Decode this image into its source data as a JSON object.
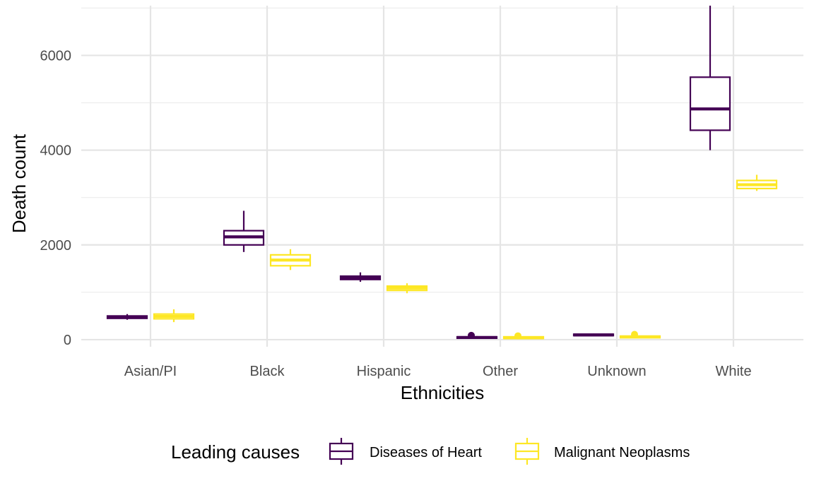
{
  "chart_data": {
    "type": "boxplot",
    "xlabel": "Ethnicities",
    "ylabel": "Death count",
    "ylim": [
      -150,
      7050
    ],
    "y_ticks": [
      0,
      2000,
      4000,
      6000
    ],
    "y_tick_labels": [
      "0",
      "2000",
      "4000",
      "6000"
    ],
    "grid": true,
    "legend_position": "bottom",
    "legend_title": "Leading causes",
    "categories": [
      "Asian/PI",
      "Black",
      "Hispanic",
      "Other",
      "Unknown",
      "White"
    ],
    "series": [
      {
        "name": "Diseases of Heart",
        "color": "#440154",
        "boxes": [
          {
            "category": "Asian/PI",
            "min": 420,
            "q1": 450,
            "median": 470,
            "q3": 500,
            "max": 540,
            "outliers": []
          },
          {
            "category": "Black",
            "min": 1850,
            "q1": 2000,
            "median": 2170,
            "q3": 2300,
            "max": 2720,
            "outliers": []
          },
          {
            "category": "Hispanic",
            "min": 1220,
            "q1": 1270,
            "median": 1300,
            "q3": 1340,
            "max": 1420,
            "outliers": []
          },
          {
            "category": "Other",
            "min": 20,
            "q1": 30,
            "median": 45,
            "q3": 60,
            "max": 75,
            "outliers": [
              90
            ]
          },
          {
            "category": "Unknown",
            "min": 80,
            "q1": 85,
            "median": 100,
            "q3": 115,
            "max": 130,
            "outliers": []
          },
          {
            "category": "White",
            "min": 4000,
            "q1": 4420,
            "median": 4870,
            "q3": 5540,
            "max": 7050,
            "outliers": []
          }
        ]
      },
      {
        "name": "Malignant Neoplasms",
        "color": "#FDE725",
        "boxes": [
          {
            "category": "Asian/PI",
            "min": 370,
            "q1": 440,
            "median": 490,
            "q3": 540,
            "max": 640,
            "outliers": []
          },
          {
            "category": "Black",
            "min": 1470,
            "q1": 1560,
            "median": 1680,
            "q3": 1790,
            "max": 1910,
            "outliers": []
          },
          {
            "category": "Hispanic",
            "min": 980,
            "q1": 1040,
            "median": 1090,
            "q3": 1130,
            "max": 1190,
            "outliers": []
          },
          {
            "category": "Other",
            "min": 15,
            "q1": 25,
            "median": 40,
            "q3": 60,
            "max": 70,
            "outliers": [
              80
            ]
          },
          {
            "category": "Unknown",
            "min": 30,
            "q1": 40,
            "median": 60,
            "q3": 75,
            "max": 85,
            "outliers": [
              110
            ]
          },
          {
            "category": "White",
            "min": 3140,
            "q1": 3190,
            "median": 3270,
            "q3": 3360,
            "max": 3480,
            "outliers": []
          }
        ]
      }
    ]
  }
}
